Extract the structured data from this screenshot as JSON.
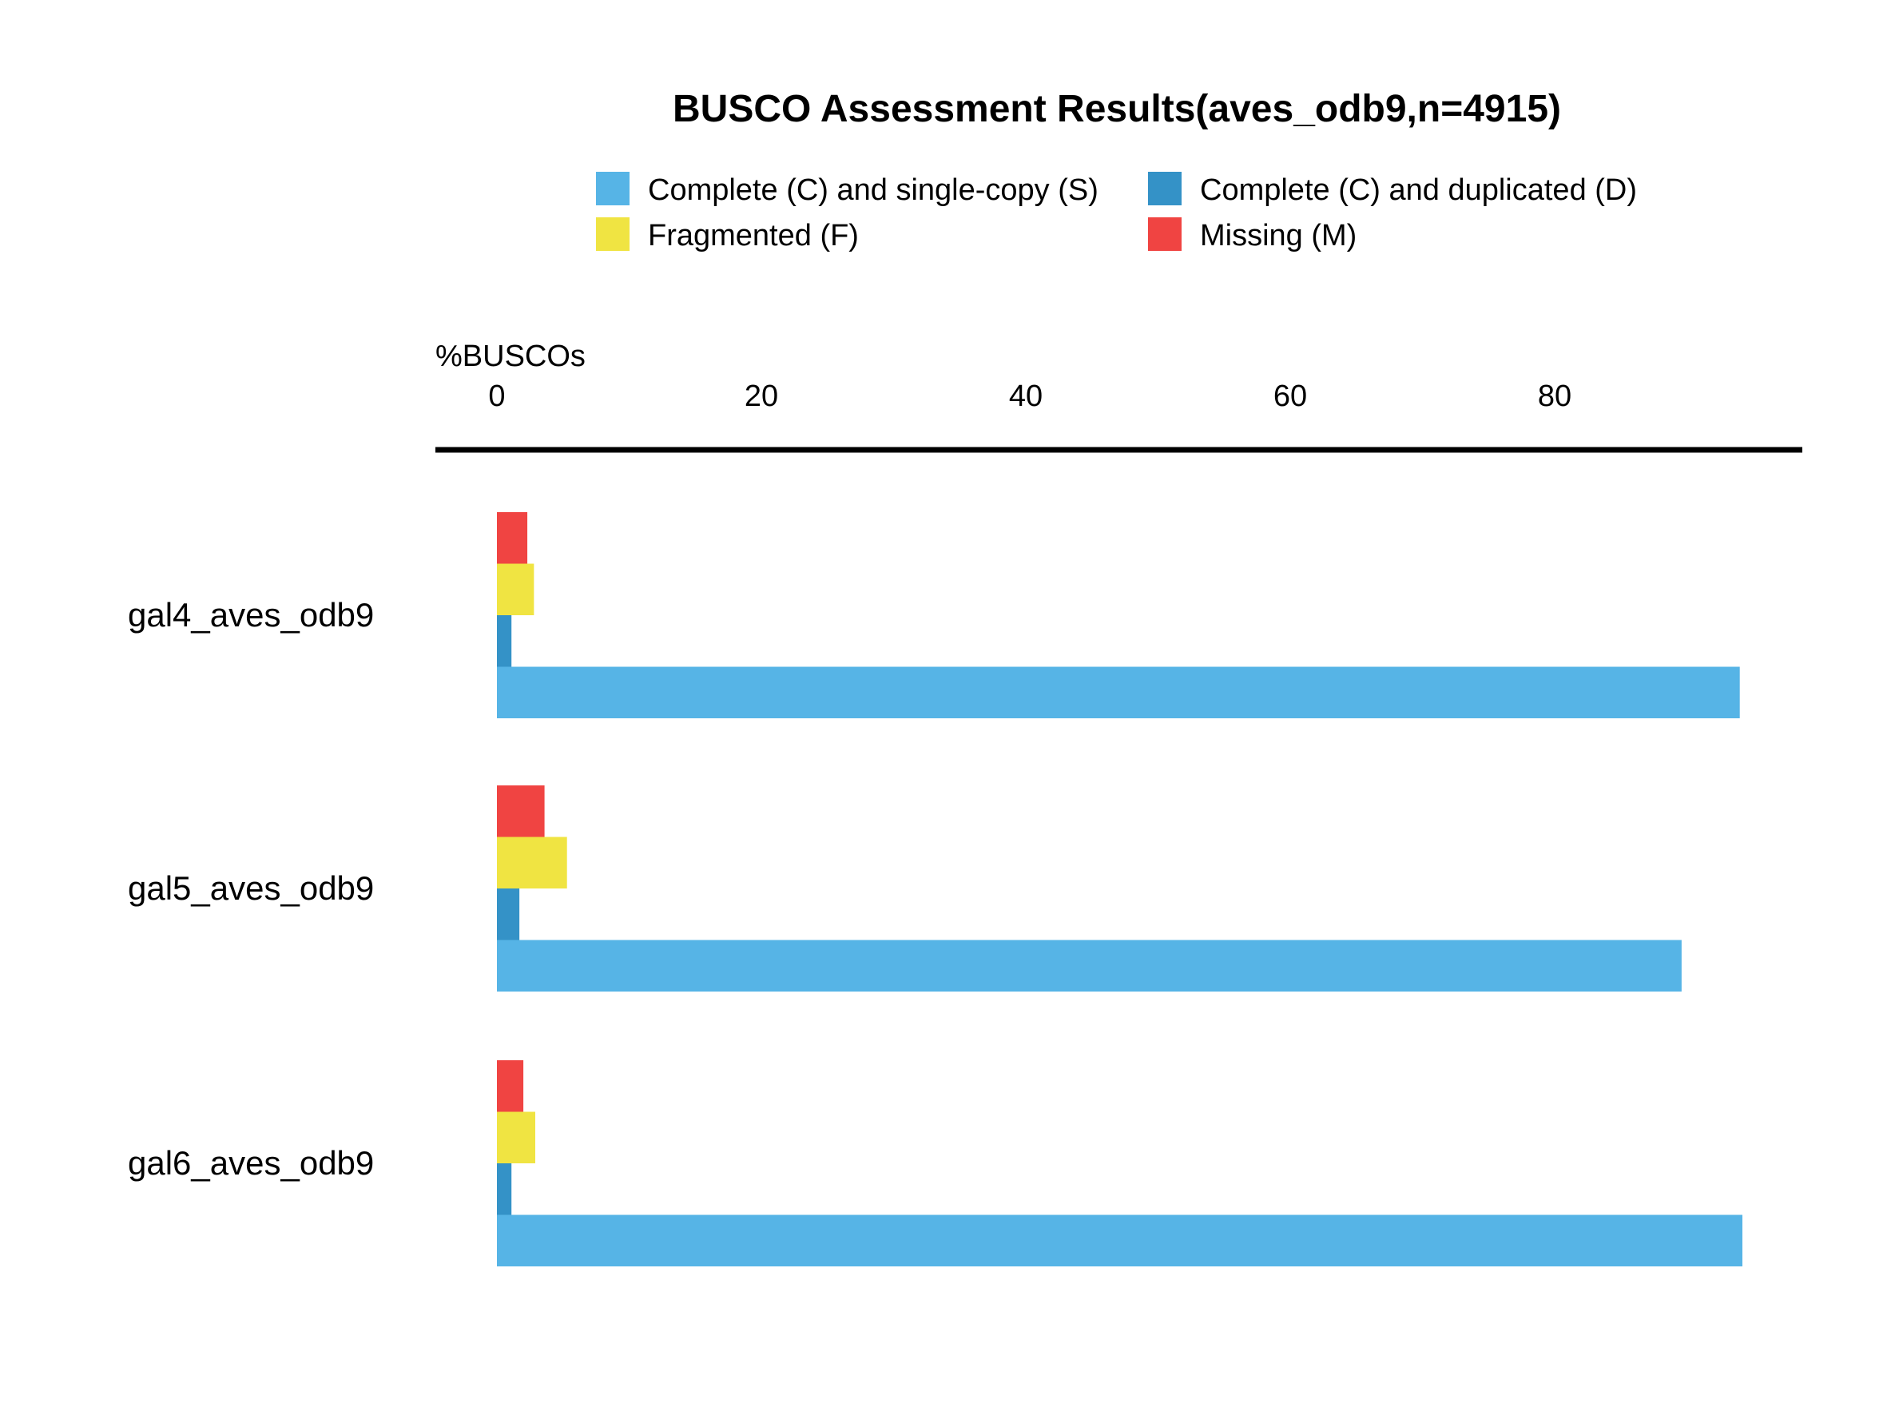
{
  "chart_data": {
    "type": "bar",
    "orientation": "horizontal",
    "title": "BUSCO Assessment Results(aves_odb9,n=4915)",
    "xlabel": "%BUSCOs",
    "ylabel": "",
    "xlim": [
      0,
      100
    ],
    "xticks": [
      0,
      20,
      40,
      60,
      80
    ],
    "x_axis_position": "top",
    "grid": false,
    "legend_position": "top",
    "categories": [
      "gal4_aves_odb9",
      "gal5_aves_odb9",
      "gal6_aves_odb9"
    ],
    "series": [
      {
        "name": "Complete (C) and single-copy (S)",
        "color": "#56B4E6",
        "values": [
          94.0,
          89.6,
          94.2
        ]
      },
      {
        "name": "Complete (C) and duplicated (D)",
        "color": "#3492C7",
        "values": [
          1.1,
          1.7,
          1.1
        ]
      },
      {
        "name": "Fragmented (F)",
        "color": "#F0E442",
        "values": [
          2.8,
          5.3,
          2.9
        ]
      },
      {
        "name": "Missing (M)",
        "color": "#F04442",
        "values": [
          2.3,
          3.6,
          2.0
        ]
      }
    ]
  }
}
